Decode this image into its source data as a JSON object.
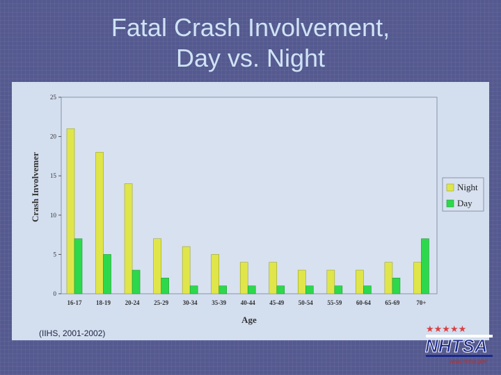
{
  "title_line1": "Fatal Crash Involvement,",
  "title_line2": "Day vs. Night",
  "source": "(IIHS, 2001-2002)",
  "logo": {
    "text": "NHTSA",
    "tagline": "www.nhtsa.gov",
    "icon": "nhtsa-logo"
  },
  "colors": {
    "night": "#e0e64a",
    "day": "#2ed84c",
    "background": "#54598f",
    "panel": "#d3deef"
  },
  "chart_data": {
    "type": "bar",
    "xlabel": "Age",
    "ylabel": "Crash Involvemer",
    "ylim": [
      0,
      25
    ],
    "yticks": [
      0,
      5,
      10,
      15,
      20,
      25
    ],
    "grid": false,
    "legend_position": "right",
    "categories": [
      "16-17",
      "18-19",
      "20-24",
      "25-29",
      "30-34",
      "35-39",
      "40-44",
      "45-49",
      "50-54",
      "55-59",
      "60-64",
      "65-69",
      "70+"
    ],
    "series": [
      {
        "name": "Night",
        "values": [
          21,
          18,
          14,
          7,
          6,
          5,
          4,
          4,
          3,
          3,
          3,
          4,
          4
        ]
      },
      {
        "name": "Day",
        "values": [
          7,
          5,
          3,
          2,
          1,
          1,
          1,
          1,
          1,
          1,
          1,
          2,
          7
        ]
      }
    ]
  }
}
